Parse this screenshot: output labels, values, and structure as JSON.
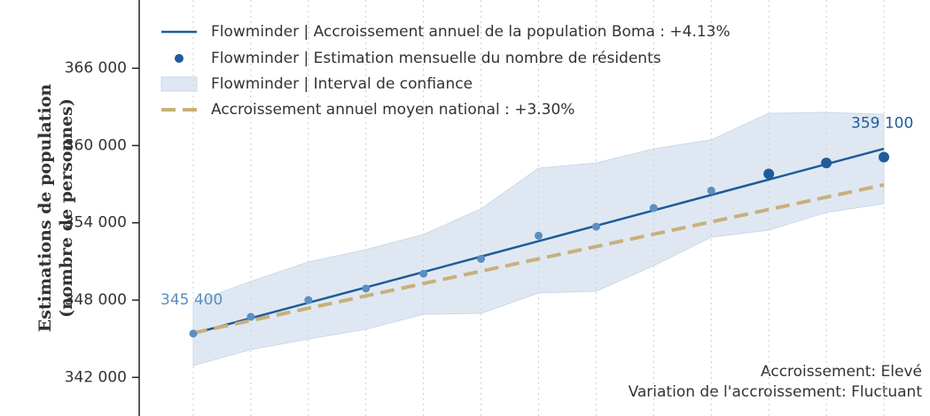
{
  "chart_data": {
    "type": "line",
    "y_title": [
      "Estimations de population",
      "(nombre de personnes)"
    ],
    "categories": [
      null,
      null,
      null,
      null,
      null,
      null,
      null,
      null,
      null,
      null,
      null,
      null,
      null
    ],
    "ylim": [
      339000,
      371300
    ],
    "yticks": [
      {
        "value": 342000,
        "label": "342 000"
      },
      {
        "value": 348000,
        "label": "348 000"
      },
      {
        "value": 354000,
        "label": "354 000"
      },
      {
        "value": 360000,
        "label": "360 000"
      },
      {
        "value": 366000,
        "label": "366 000"
      }
    ],
    "vertical_grid": true,
    "legend": "upper left",
    "series": [
      {
        "name": "Flowminder | Accroissement annuel de la population Boma : +4.13%",
        "style": "line",
        "color": "#1f5c99",
        "values": [
          345400,
          346596,
          347792,
          348988,
          350183,
          351379,
          352575,
          353771,
          354967,
          356163,
          357358,
          358554,
          359750
        ]
      },
      {
        "name": "Flowminder | Estimation mensuelle du nombre de résidents",
        "style": "scatter",
        "color": "#1f5c99",
        "colors": [
          "#5b8fc0",
          "#5b8fc0",
          "#5b8fc0",
          "#5b8fc0",
          "#5b8fc0",
          "#5b8fc0",
          "#5b8fc0",
          "#5b8fc0",
          "#5b8fc0",
          "#5b8fc0",
          "#1f5c99",
          "#1f5c99",
          "#1f5c99"
        ],
        "values": [
          345400,
          346700,
          348000,
          348900,
          350050,
          351200,
          353000,
          353700,
          355150,
          356500,
          357800,
          358650,
          359100
        ],
        "value_labels": [
          "345 400",
          null,
          null,
          null,
          null,
          null,
          null,
          null,
          null,
          null,
          null,
          null,
          "359 100"
        ]
      },
      {
        "name": "Flowminder | Interval de confiance",
        "style": "band",
        "color": "#c9d9ea",
        "upper": [
          347800,
          349450,
          350960,
          351920,
          353090,
          355080,
          358240,
          358650,
          359750,
          360440,
          362500,
          362570,
          362430
        ],
        "lower": [
          342920,
          344150,
          344980,
          345730,
          346900,
          346970,
          348550,
          348690,
          350680,
          352880,
          353430,
          354810,
          355490
        ]
      },
      {
        "name": "Accroissement annuel moyen national : +3.30%",
        "style": "dashed",
        "color": "#c8b07c",
        "values": [
          345450,
          346408,
          347367,
          348325,
          349283,
          350242,
          351200,
          352158,
          353117,
          354075,
          355033,
          355992,
          356950
        ]
      }
    ],
    "annotations": [
      "Accroissement: Elevé",
      "Variation de l'accroissement: Fluctuant"
    ]
  }
}
